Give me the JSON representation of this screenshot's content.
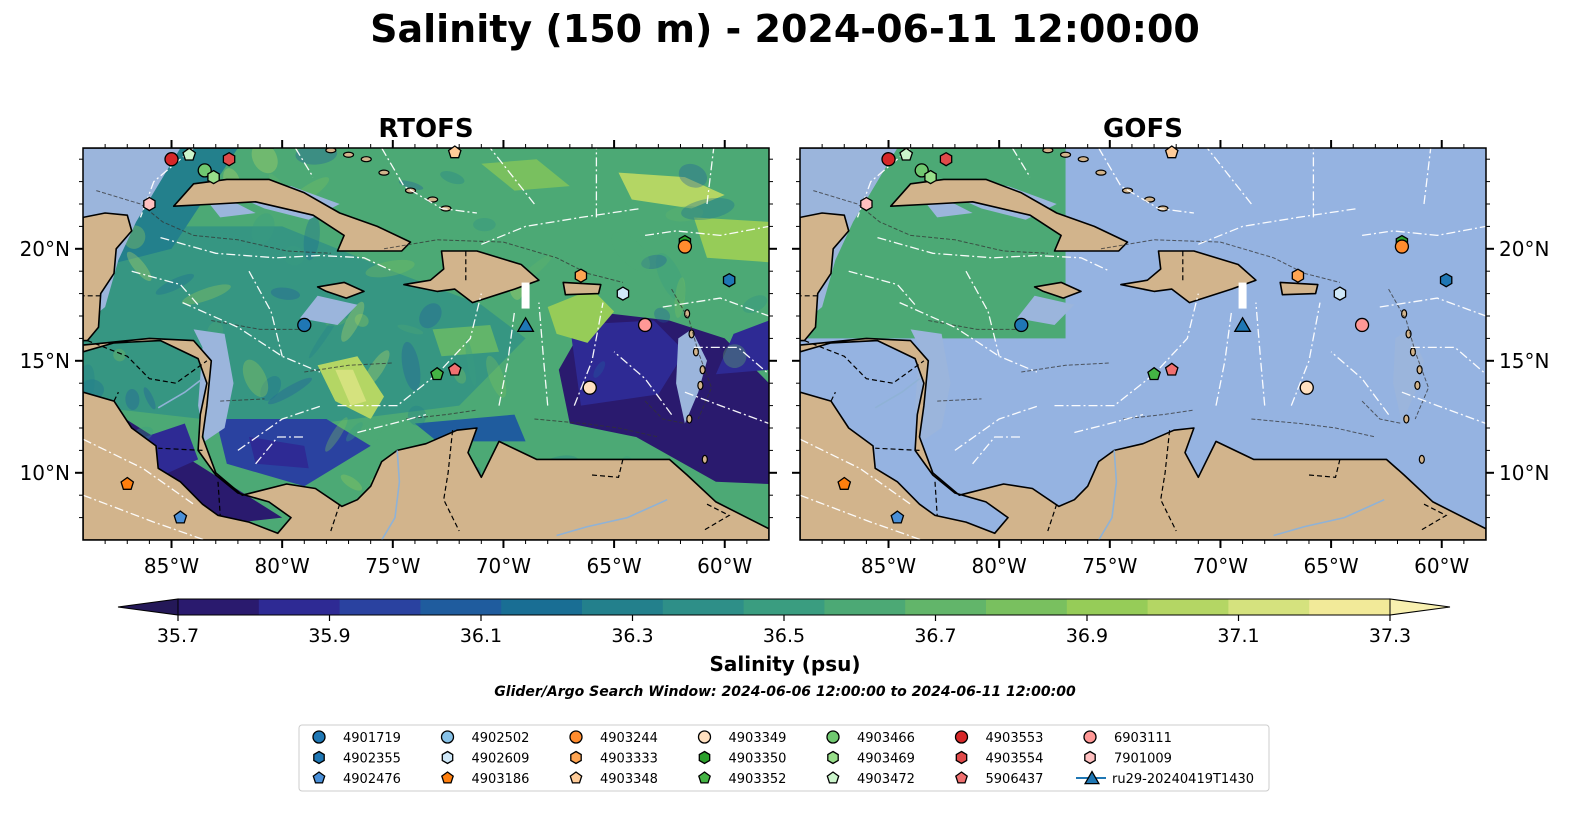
{
  "figure": {
    "title": "Salinity (150 m) - 2024-06-11 12:00:00",
    "note": "Glider/Argo Search Window: 2024-06-06 12:00:00 to 2024-06-11 12:00:00"
  },
  "chart_data": {
    "type": "heatmap",
    "panels": [
      {
        "title": "RTOFS",
        "model_coverage": "full"
      },
      {
        "title": "GOFS",
        "model_coverage": "northwest",
        "model_extent": {
          "lon": [
            -89,
            -77
          ],
          "lat": [
            16,
            24.5
          ]
        }
      }
    ],
    "xlim": [
      -89,
      -58
    ],
    "ylim": [
      7,
      24.5
    ],
    "xticks": [
      {
        "lon": -85,
        "label": "85°W"
      },
      {
        "lon": -80,
        "label": "80°W"
      },
      {
        "lon": -75,
        "label": "75°W"
      },
      {
        "lon": -70,
        "label": "70°W"
      },
      {
        "lon": -65,
        "label": "65°W"
      },
      {
        "lon": -60,
        "label": "60°W"
      }
    ],
    "yticks": [
      {
        "lat": 20,
        "label": "20°N"
      },
      {
        "lat": 15,
        "label": "15°N"
      },
      {
        "lat": 10,
        "label": "10°N"
      }
    ],
    "colorbar": {
      "label": "Salinity (psu)",
      "range": [
        35.6,
        37.4
      ],
      "step": 0.1,
      "extend": "both",
      "ticks": [
        "35.7",
        "35.9",
        "36.1",
        "36.3",
        "36.5",
        "36.7",
        "36.9",
        "37.1",
        "37.3"
      ],
      "colors": [
        "#2a1a6e",
        "#2e2a94",
        "#2a42a0",
        "#1f5c9e",
        "#196e94",
        "#23808c",
        "#2e8f88",
        "#3a9d80",
        "#4ca975",
        "#62b56a",
        "#79c05f",
        "#96cc58",
        "#b4d664",
        "#d5e27e",
        "#f2ea99"
      ],
      "extend_low": "#241858",
      "extend_high": "#f8f0b0"
    },
    "colors": {
      "land": "#d2b48c",
      "shelf": "#9bb5dc",
      "masked": "#95b3e1",
      "eez": "#ffffff"
    },
    "legend": {
      "columns": 7,
      "entries": [
        {
          "label": "4901719",
          "marker": "circle",
          "color": "#1f77b4"
        },
        {
          "label": "4902355",
          "marker": "hexagon",
          "color": "#1f77b4"
        },
        {
          "label": "4902476",
          "marker": "pentagon",
          "color": "#4a90d9"
        },
        {
          "label": "4902502",
          "marker": "circle",
          "color": "#87c2e8"
        },
        {
          "label": "4902609",
          "marker": "hexagon",
          "color": "#cfe8f8"
        },
        {
          "label": "4903186",
          "marker": "pentagon",
          "color": "#ff7f0e"
        },
        {
          "label": "4903244",
          "marker": "circle",
          "color": "#ff8c2e"
        },
        {
          "label": "4903333",
          "marker": "hexagon",
          "color": "#ffa552"
        },
        {
          "label": "4903348",
          "marker": "pentagon",
          "color": "#ffcc99"
        },
        {
          "label": "4903349",
          "marker": "circle",
          "color": "#ffe0c0"
        },
        {
          "label": "4903350",
          "marker": "hexagon",
          "color": "#2ca02c"
        },
        {
          "label": "4903352",
          "marker": "pentagon",
          "color": "#44b444"
        },
        {
          "label": "4903466",
          "marker": "circle",
          "color": "#70c870"
        },
        {
          "label": "4903469",
          "marker": "hexagon",
          "color": "#98df8a"
        },
        {
          "label": "4903472",
          "marker": "pentagon",
          "color": "#ccf5cc"
        },
        {
          "label": "4903553",
          "marker": "circle",
          "color": "#d62728"
        },
        {
          "label": "4903554",
          "marker": "hexagon",
          "color": "#e04a4a"
        },
        {
          "label": "5906437",
          "marker": "pentagon",
          "color": "#f07070"
        },
        {
          "label": "6903111",
          "marker": "circle",
          "color": "#ff9896"
        },
        {
          "label": "7901009",
          "marker": "hexagon",
          "color": "#ffc0c0"
        },
        {
          "label": "ru29-20240419T1430",
          "marker": "triangle",
          "color": "#1f77b4",
          "line": true
        }
      ]
    },
    "points": [
      {
        "id": "4903553",
        "lon": -85.0,
        "lat": 24.0
      },
      {
        "id": "4903472",
        "lon": -84.2,
        "lat": 24.2
      },
      {
        "id": "4903554",
        "lon": -82.4,
        "lat": 24.0
      },
      {
        "id": "4903466",
        "lon": -83.5,
        "lat": 23.5
      },
      {
        "id": "4903469",
        "lon": -83.1,
        "lat": 23.2
      },
      {
        "id": "7901009",
        "lon": -86.0,
        "lat": 22.0
      },
      {
        "id": "4903348",
        "lon": -72.2,
        "lat": 24.3
      },
      {
        "id": "4903350",
        "lon": -61.8,
        "lat": 20.3
      },
      {
        "id": "4903244",
        "lon": -61.8,
        "lat": 20.1
      },
      {
        "id": "4902355",
        "lon": -59.8,
        "lat": 18.6
      },
      {
        "id": "4903333",
        "lon": -66.5,
        "lat": 18.8
      },
      {
        "id": "4902609",
        "lon": -64.6,
        "lat": 18.0
      },
      {
        "id": "4901719",
        "lon": -79.0,
        "lat": 16.6
      },
      {
        "id": "6903111",
        "lon": -63.6,
        "lat": 16.6
      },
      {
        "id": "4903352",
        "lon": -73.0,
        "lat": 14.4
      },
      {
        "id": "5906437",
        "lon": -72.2,
        "lat": 14.6
      },
      {
        "id": "4903349",
        "lon": -66.1,
        "lat": 13.8
      },
      {
        "id": "4903186",
        "lon": -87.0,
        "lat": 9.5
      },
      {
        "id": "4902476",
        "lon": -84.6,
        "lat": 8.0
      },
      {
        "id": "ru29-20240419T1430",
        "lon": -69.0,
        "lat": 16.6
      }
    ]
  }
}
